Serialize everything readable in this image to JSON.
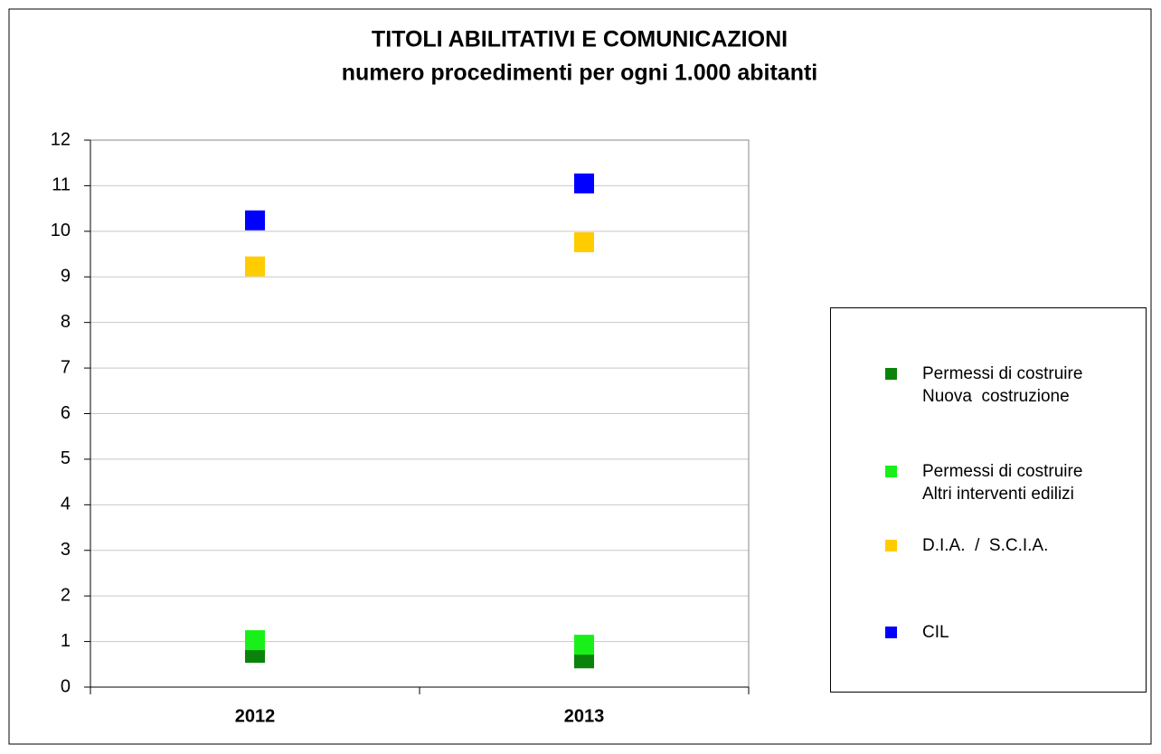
{
  "chart_data": {
    "type": "scatter",
    "title": "TITOLI ABILITATIVI E COMUNICAZIONI",
    "subtitle": "numero procedimenti per ogni 1.000 abitanti",
    "categories": [
      "2012",
      "2013"
    ],
    "series": [
      {
        "name": "Permessi di costruire\nNuova  costruzione",
        "color": "#0b820b",
        "values": [
          0.75,
          0.63
        ]
      },
      {
        "name": "Permessi di costruire\nAltri interventi edilizi",
        "color": "#19f019",
        "values": [
          1.03,
          0.93
        ]
      },
      {
        "name": "D.I.A.  /  S.C.I.A.",
        "color": "#ffcc00",
        "values": [
          9.23,
          9.76
        ]
      },
      {
        "name": "CIL",
        "color": "#0000ff",
        "values": [
          10.24,
          11.05
        ]
      }
    ],
    "ylim": [
      0,
      12
    ],
    "yticks": [
      0,
      1,
      2,
      3,
      4,
      5,
      6,
      7,
      8,
      9,
      10,
      11,
      12
    ],
    "grid": true,
    "legend": "right"
  }
}
